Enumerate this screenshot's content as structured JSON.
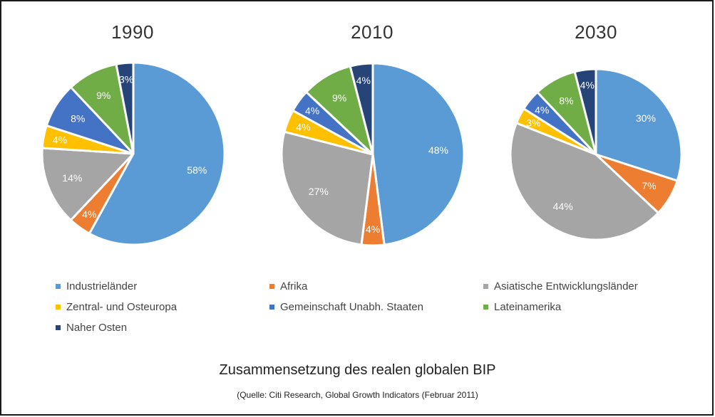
{
  "chart_data": {
    "type": "pie",
    "title": "Zusammensetzung des realen globalen BIP",
    "subtitle": "(Quelle: Citi Research, Global Growth Indicators (Februar 2011)",
    "categories": [
      "Industrieländer",
      "Afrika",
      "Asiatische Entwicklungsländer",
      "Zentral- und Osteuropa",
      "Gemeinschaft Unabh. Staaten",
      "Lateinamerika",
      "Naher Osten"
    ],
    "colors": [
      "#5b9bd5",
      "#ed7d31",
      "#a5a5a5",
      "#ffc000",
      "#4472c4",
      "#70ad47",
      "#264478"
    ],
    "legend_position": "bottom",
    "pies": [
      {
        "title": "1990",
        "values": [
          58,
          4,
          14,
          4,
          8,
          9,
          3
        ],
        "labels": [
          "58%",
          "4%",
          "14%",
          "4%",
          "8%",
          "9%",
          "3%"
        ]
      },
      {
        "title": "2010",
        "values": [
          48,
          4,
          27,
          4,
          4,
          9,
          4
        ],
        "labels": [
          "48%",
          "4%",
          "27%",
          "4%",
          "4%",
          "9%",
          "4%"
        ]
      },
      {
        "title": "2030",
        "values": [
          30,
          7,
          44,
          3,
          4,
          8,
          4
        ],
        "labels": [
          "30%",
          "7%",
          "44%",
          "3%",
          "4%",
          "8%",
          "4%"
        ]
      }
    ]
  }
}
